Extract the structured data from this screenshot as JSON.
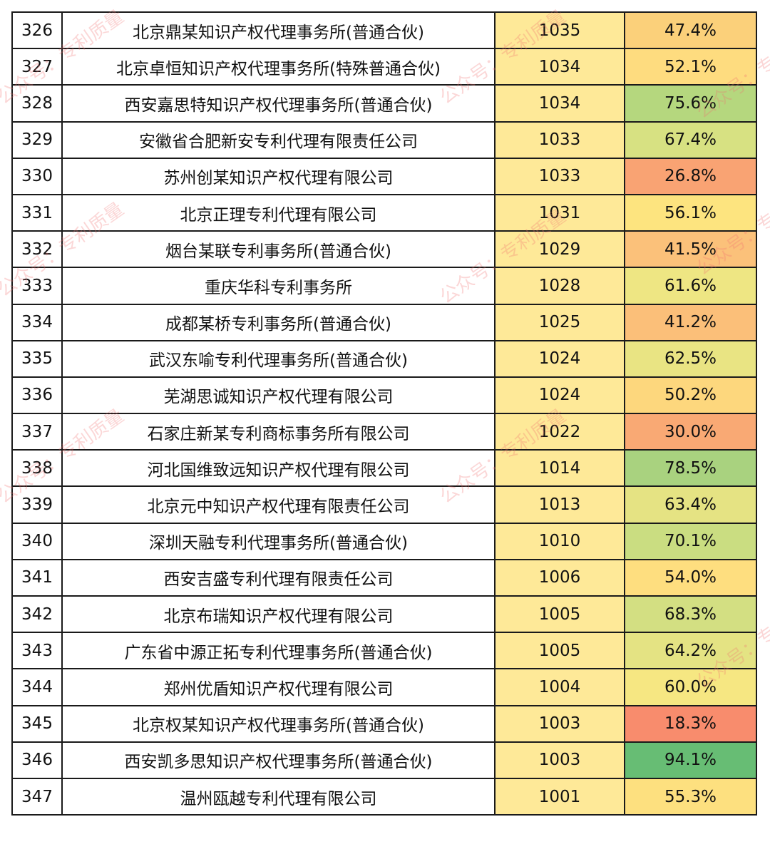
{
  "rows": [
    {
      "rank": "326",
      "name": "北京鼎某知识产权代理事务所(普通合伙)",
      "count": "1035",
      "pct": "47.4%",
      "pct_color": "#fbd07a"
    },
    {
      "rank": "327",
      "name": "北京卓恒知识产权代理事务所(特殊普通合伙)",
      "count": "1034",
      "pct": "52.1%",
      "pct_color": "#fedc7f"
    },
    {
      "rank": "328",
      "name": "西安嘉思特知识产权代理事务所(普通合伙)",
      "count": "1034",
      "pct": "75.6%",
      "pct_color": "#b5d77e"
    },
    {
      "rank": "329",
      "name": "安徽省合肥新安专利代理有限责任公司",
      "count": "1033",
      "pct": "67.4%",
      "pct_color": "#d7e182"
    },
    {
      "rank": "330",
      "name": "苏州创某知识产权代理有限公司",
      "count": "1033",
      "pct": "26.8%",
      "pct_color": "#f9a373"
    },
    {
      "rank": "331",
      "name": "北京正理专利代理有限公司",
      "count": "1031",
      "pct": "56.1%",
      "pct_color": "#fde47f"
    },
    {
      "rank": "332",
      "name": "烟台某联专利事务所(普通合伙)",
      "count": "1029",
      "pct": "41.5%",
      "pct_color": "#fbc17a"
    },
    {
      "rank": "333",
      "name": "重庆华科专利事务所",
      "count": "1028",
      "pct": "61.6%",
      "pct_color": "#eee683"
    },
    {
      "rank": "334",
      "name": "成都某桥专利事务所(普通合伙)",
      "count": "1025",
      "pct": "41.2%",
      "pct_color": "#fbbf79"
    },
    {
      "rank": "335",
      "name": "武汉东喻专利代理事务所(普通合伙)",
      "count": "1024",
      "pct": "62.5%",
      "pct_color": "#e9e483"
    },
    {
      "rank": "336",
      "name": "芜湖思诚知识产权代理有限公司",
      "count": "1024",
      "pct": "50.2%",
      "pct_color": "#fdd77d"
    },
    {
      "rank": "337",
      "name": "石家庄新某专利商标事务所有限公司",
      "count": "1022",
      "pct": "30.0%",
      "pct_color": "#f9a974"
    },
    {
      "rank": "338",
      "name": "河北国维致远知识产权代理有限公司",
      "count": "1014",
      "pct": "78.5%",
      "pct_color": "#a9d27f"
    },
    {
      "rank": "339",
      "name": "北京元中知识产权代理有限责任公司",
      "count": "1013",
      "pct": "63.4%",
      "pct_color": "#e5e383"
    },
    {
      "rank": "340",
      "name": "深圳天融专利代理事务所(普通合伙)",
      "count": "1010",
      "pct": "70.1%",
      "pct_color": "#cadd81"
    },
    {
      "rank": "341",
      "name": "西安吉盛专利代理有限责任公司",
      "count": "1006",
      "pct": "54.0%",
      "pct_color": "#fede7f"
    },
    {
      "rank": "342",
      "name": "北京布瑞知识产权代理有限公司",
      "count": "1005",
      "pct": "68.3%",
      "pct_color": "#d3df82"
    },
    {
      "rank": "343",
      "name": "广东省中源正拓专利代理事务所(普通合伙)",
      "count": "1005",
      "pct": "64.2%",
      "pct_color": "#e4e383"
    },
    {
      "rank": "344",
      "name": "郑州优盾知识产权代理有限公司",
      "count": "1004",
      "pct": "60.0%",
      "pct_color": "#f6e782"
    },
    {
      "rank": "345",
      "name": "北京权某知识产权代理事务所(普通合伙)",
      "count": "1003",
      "pct": "18.3%",
      "pct_color": "#f88c6d"
    },
    {
      "rank": "346",
      "name": "西安凯多思知识产权代理事务所(普通合伙)",
      "count": "1003",
      "pct": "94.1%",
      "pct_color": "#67bd74"
    },
    {
      "rank": "347",
      "name": "温州瓯越专利代理有限公司",
      "count": "1001",
      "pct": "55.3%",
      "pct_color": "#fde07f"
    }
  ],
  "watermarks": [
    "公众号：专利质量",
    "公众号：专利质量",
    "公众号：专利质量",
    "公众号：专利质量",
    "公众号：专利质量",
    "公众号：专利质量",
    "公众号：专利质量",
    "公众号：专利质量",
    "公众号：专利质量"
  ]
}
